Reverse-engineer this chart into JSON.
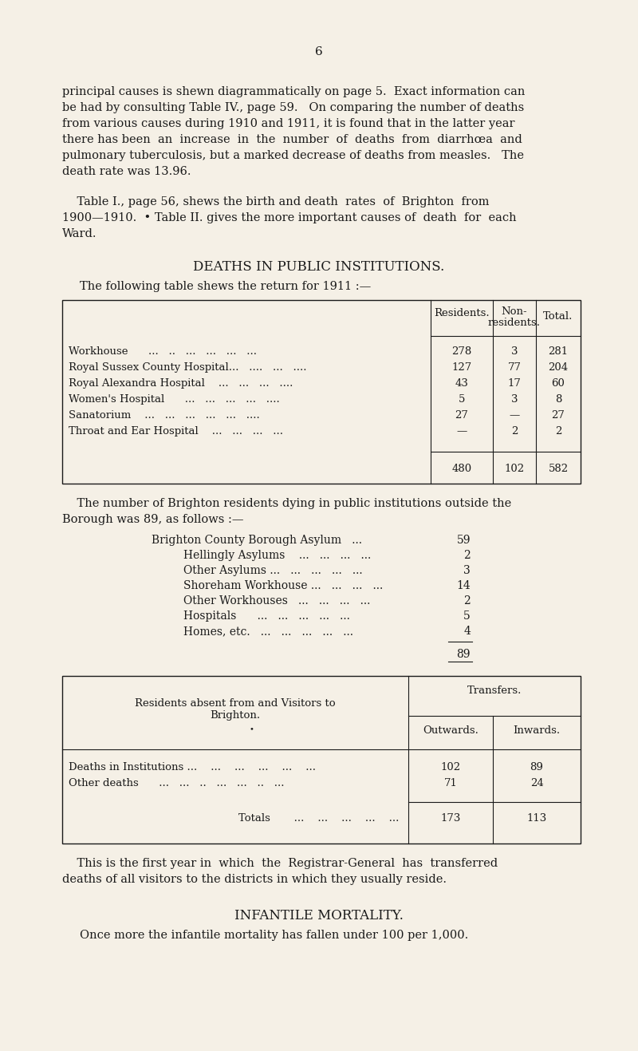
{
  "bg_color": "#f5f0e6",
  "text_color": "#1a1a1a",
  "page_number": "6",
  "para1_lines": [
    "principal causes is shewn diagrammatically on page 5.  Exact information can",
    "be had by consulting Table IV., page 59.   On comparing the number of deaths",
    "from various causes during 1910 and 1911, it is found that in the latter year",
    "there has been  an  increase  in  the  number  of  deaths  from  diarrhœa  and",
    "pulmonary tuberculosis, but a marked decrease of deaths from measles.   The",
    "death rate was 13.96."
  ],
  "para2_lines": [
    "    Table I., page 56, shews the birth and death  rates  of  Brighton  from",
    "1900—1910.  • Table II. gives the more important causes of  death  for  each",
    "Ward."
  ],
  "section_title": "DEATHS IN PUBLIC INSTITUTIONS.",
  "table1_intro": "The following table shews the return for 1911 :—",
  "table1_row_names": [
    "Workhouse      ...   ..   ...   ...   ...   ...",
    "Royal Sussex County Hospital...   ....   ...   ....",
    "Royal Alexandra Hospital    ...   ...   ...   ....",
    "Women's Hospital      ...   ...   ...   ...   ....",
    "Sanatorium    ...   ...   ...   ...   ...   ....",
    "Throat and Ear Hospital    ...   ...   ...   ..."
  ],
  "table1_residents": [
    "278",
    "127",
    "43",
    "5",
    "27",
    "—"
  ],
  "table1_nonres": [
    "3",
    "77",
    "17",
    "3",
    "—",
    "2"
  ],
  "table1_totals": [
    "281",
    "204",
    "60",
    "8",
    "27",
    "2"
  ],
  "table1_sum": [
    "480",
    "102",
    "582"
  ],
  "para3_lines": [
    "    The number of Brighton residents dying in public institutions outside the",
    "Borough was 89, as follows :—"
  ],
  "list_items": [
    [
      "Brighton County Borough Asylum   ...",
      "59",
      true
    ],
    [
      "Hellingly Asylums    ...   ...   ...   ...",
      "2",
      false
    ],
    [
      "Other Asylums ...   ...   ...   ...   ...",
      "3",
      false
    ],
    [
      "Shoreham Workhouse ...   ...   ...   ...",
      "14",
      false
    ],
    [
      "Other Workhouses   ...   ...   ...   ...",
      "2",
      false
    ],
    [
      "Hospitals      ...   ...   ...   ...   ...",
      "5",
      false
    ],
    [
      "Homes, etc.   ...   ...   ...   ...   ...",
      "4",
      false
    ]
  ],
  "list_total": "89",
  "table2_left_header": "Residents absent from and Visitors to",
  "table2_left_header2": "Brighton.",
  "table2_right_header": "Transfers.",
  "table2_col1": "Outwards.",
  "table2_col2": "Inwards.",
  "table2_rows": [
    [
      "Deaths in Institutions ...    ...    ...    ...    ...    ...",
      "102",
      "89"
    ],
    [
      "Other deaths      ...   ...   ..   ...   ...   ..   ...",
      "71",
      "24"
    ]
  ],
  "table2_totals_label": "Totals       ...    ...    ...    ...    ...",
  "table2_totals": [
    "173",
    "113"
  ],
  "para4_lines": [
    "    This is the first year in  which  the  Registrar-General  has  transferred",
    "deaths of all visitors to the districts in which they usually reside."
  ],
  "section2_title": "INFANTILE MORTALITY.",
  "para5": "Once more the infantile mortality has fallen under 100 per 1,000."
}
